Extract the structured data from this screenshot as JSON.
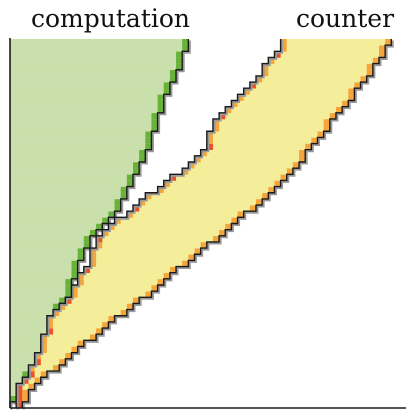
{
  "labels": {
    "left": "computation",
    "right": "counter"
  },
  "colors": {
    "background": "#ffffff",
    "computation_fill": "#c9e0ad",
    "computation_edge": "#68b23a",
    "counter_fill": "#f4ee9a",
    "counter_edge": "#f6a53b",
    "counter_hot": "#e9522d",
    "outline": "#1a1a1a",
    "shadow": "#9a9a9a"
  }
}
